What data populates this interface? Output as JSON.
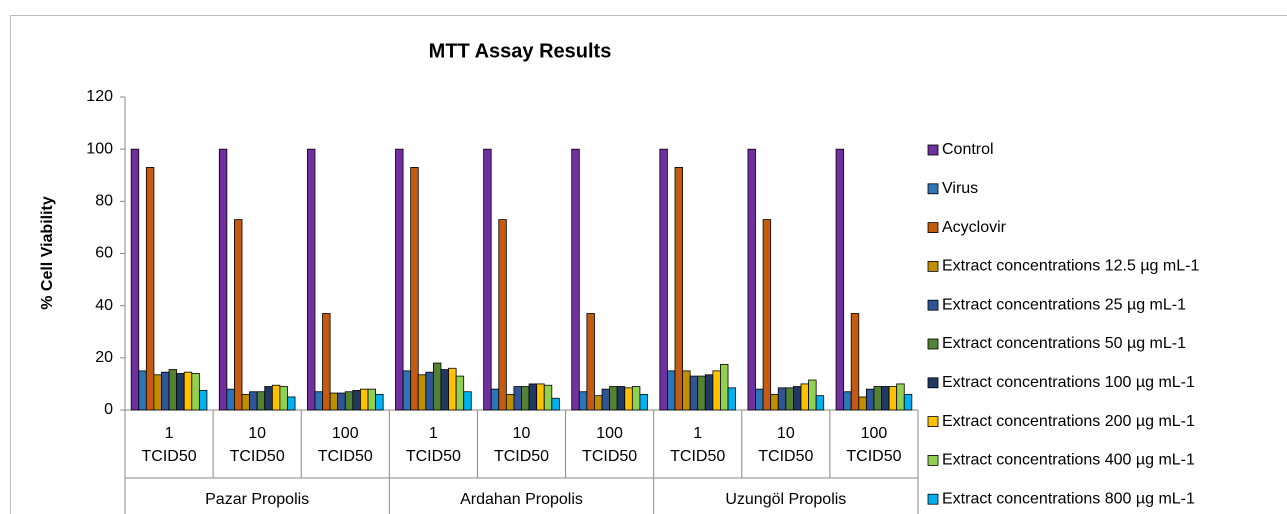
{
  "chart_data": {
    "type": "bar",
    "title": "MTT Assay Results",
    "y_label": "% Cell Viability",
    "categories": [
      "1 TCID50",
      "10 TCID50",
      "100 TCID50",
      "1 TCID50",
      "10 TCID50",
      "100 TCID50",
      "1 TCID50",
      "10 TCID50",
      "100 TCID50"
    ],
    "groups": [
      "Pazar Propolis",
      "Ardahan Propolis",
      "Uzungöl Propolis"
    ],
    "series": [
      {
        "name": "Control",
        "color": "#7030a0",
        "values": [
          100,
          100,
          100,
          100,
          100,
          100,
          100,
          100,
          100
        ]
      },
      {
        "name": "Virus",
        "color": "#2e75b6",
        "values": [
          15,
          8,
          7,
          15,
          8,
          7,
          15,
          8,
          7
        ]
      },
      {
        "name": "Acyclovir",
        "color": "#c55a11",
        "values": [
          93,
          73,
          37,
          93,
          73,
          37,
          93,
          73,
          37
        ]
      },
      {
        "name": "Extract concentrations 12.5 µg mL-1",
        "color": "#bf8f00",
        "values": [
          13.5,
          6,
          6.5,
          13.5,
          6,
          5.5,
          15,
          6,
          5
        ]
      },
      {
        "name": "Extract concentrations 25 µg mL-1",
        "color": "#2f5597",
        "values": [
          14.5,
          7,
          6.5,
          14.5,
          9,
          8,
          13,
          8.5,
          8
        ]
      },
      {
        "name": "Extract concentrations 50 µg mL-1",
        "color": "#548235",
        "values": [
          15.5,
          7,
          7,
          18,
          9,
          9,
          13,
          8.5,
          9
        ]
      },
      {
        "name": "Extract concentrations 100 µg mL-1",
        "color": "#1f3864",
        "values": [
          14,
          9,
          7.5,
          15.5,
          10,
          9,
          13.5,
          9,
          9
        ]
      },
      {
        "name": "Extract concentrations 200 µg mL-1",
        "color": "#ffc000",
        "values": [
          14.5,
          9.5,
          8,
          16,
          10,
          8.5,
          15,
          10,
          9
        ]
      },
      {
        "name": "Extract concentrations 400 µg mL-1",
        "color": "#92d050",
        "values": [
          14,
          9,
          8,
          13,
          9.5,
          9,
          17.5,
          11.5,
          10
        ]
      },
      {
        "name": "Extract concentrations 800 µg mL-1",
        "color": "#00b0f0",
        "values": [
          7.5,
          5,
          6,
          7,
          4.5,
          6,
          8.5,
          5.5,
          6
        ]
      }
    ],
    "ylim": [
      0,
      120
    ],
    "yticks": [
      0,
      20,
      40,
      60,
      80,
      100,
      120
    ],
    "legend": "right"
  }
}
